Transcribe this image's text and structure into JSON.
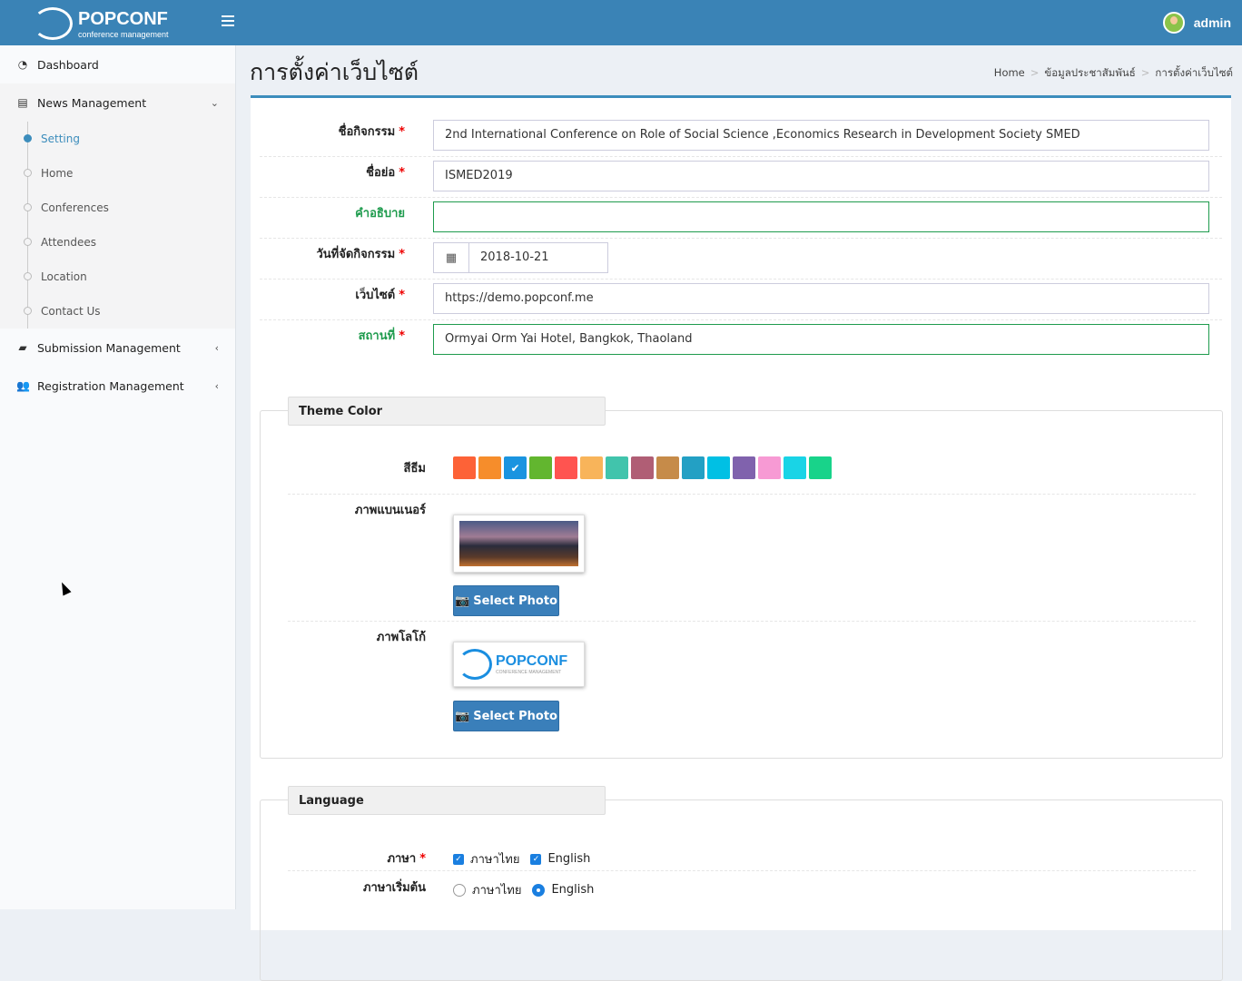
{
  "header": {
    "brand": "POPCONF",
    "brand_sub": "conference management",
    "user": "admin"
  },
  "sidebar": {
    "items": [
      {
        "label": "Dashboard",
        "icon": "dashboard-icon"
      },
      {
        "label": "News Management",
        "icon": "newspaper-icon",
        "expanded": true,
        "children": [
          "Setting",
          "Home",
          "Conferences",
          "Attendees",
          "Location",
          "Contact Us"
        ],
        "active_child": "Setting"
      },
      {
        "label": "Submission Management",
        "icon": "book-icon"
      },
      {
        "label": "Registration Management",
        "icon": "users-icon"
      }
    ]
  },
  "page": {
    "title": "การตั้งค่าเว็บไซต์",
    "breadcrumb": [
      "Home",
      "ข้อมูลประชาสัมพันธ์",
      "การตั้งค่าเว็บไซต์"
    ]
  },
  "form": {
    "event_name": {
      "label": "ชื่อกิจกรรม",
      "value": "2nd International Conference on Role of Social Science ,Economics Research in Development Society SMED",
      "required": true
    },
    "short_name": {
      "label": "ชื่อย่อ",
      "value": "ISMED2019",
      "required": true
    },
    "description": {
      "label": "คำอธิบาย",
      "value": ""
    },
    "date": {
      "label": "วันที่จัดกิจกรรม",
      "value": "2018-10-21",
      "required": true
    },
    "website": {
      "label": "เว็บไซต์",
      "value": "https://demo.popconf.me",
      "required": true
    },
    "location": {
      "label": "สถานที่",
      "value": "Ormyai Orm Yai Hotel, Bangkok, Thaoland",
      "required": true
    },
    "required_mark": "*"
  },
  "theme": {
    "legend": "Theme Color",
    "color_label": "สีธีม",
    "colors": [
      "#fd6237",
      "#f68d2b",
      "#1a94e0",
      "#62b62f",
      "#ff5450",
      "#f8b45a",
      "#41c4ac",
      "#b05e75",
      "#c68b49",
      "#23a0c4",
      "#00c0e4",
      "#8062ad",
      "#f79ad4",
      "#19d4e6",
      "#18d38a"
    ],
    "selected_index": 2,
    "banner_label": "ภาพแบนเนอร์",
    "logo_label": "ภาพโลโก้",
    "select_photo": "Select Photo",
    "logo_text": "POPCONF",
    "logo_sub": "CONFERENCE MANAGEMENT"
  },
  "language": {
    "legend": "Language",
    "lang_label": "ภาษา",
    "default_label": "ภาษาเริ่มต้น",
    "options": [
      "ภาษาไทย",
      "English"
    ],
    "enabled": [
      true,
      true
    ],
    "default": "English"
  }
}
